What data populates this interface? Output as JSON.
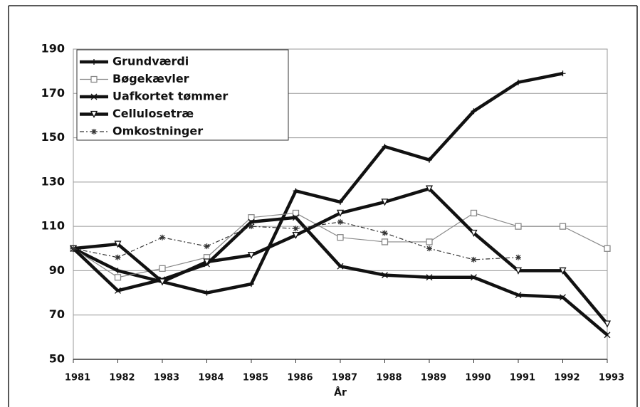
{
  "chart_data": {
    "type": "line",
    "x_label": "År",
    "x": [
      1981,
      1982,
      1983,
      1984,
      1985,
      1986,
      1987,
      1988,
      1989,
      1990,
      1991,
      1992,
      1993
    ],
    "xlim": [
      1981,
      1993
    ],
    "xticks": [
      1981,
      1982,
      1983,
      1984,
      1985,
      1986,
      1987,
      1988,
      1989,
      1990,
      1991,
      1992,
      1993
    ],
    "ylim": [
      50,
      190
    ],
    "yticks": [
      50,
      70,
      90,
      110,
      130,
      150,
      170,
      190
    ],
    "grid": true,
    "legend": "upper left",
    "series": [
      {
        "name": "Grundværdi",
        "color": "#111111",
        "line_width": 4.5,
        "marker": "plus",
        "values": [
          100,
          90,
          85,
          80,
          84,
          126,
          121,
          146,
          140,
          162,
          175,
          179,
          null
        ]
      },
      {
        "name": "Bøgekævler",
        "color": "#888888",
        "line_width": 1.2,
        "marker": "square",
        "values": [
          100,
          87,
          91,
          96,
          114,
          116,
          105,
          103,
          103,
          116,
          110,
          110,
          100
        ]
      },
      {
        "name": "Uafkortet tømmer",
        "color": "#111111",
        "line_width": 4.5,
        "marker": "x",
        "values": [
          100,
          81,
          86,
          93,
          112,
          114,
          92,
          88,
          87,
          87,
          79,
          78,
          61
        ]
      },
      {
        "name": "Cellulosetræ",
        "color": "#111111",
        "line_width": 4.5,
        "marker": "triangle",
        "values": [
          100,
          102,
          85,
          94,
          97,
          106,
          116,
          121,
          127,
          107,
          90,
          90,
          66
        ]
      },
      {
        "name": "Omkostninger",
        "color": "#333333",
        "line_width": 1.2,
        "marker": "asterisk",
        "dash": "6 3 2 3",
        "values": [
          100,
          96,
          105,
          101,
          110,
          109,
          112,
          107,
          100,
          95,
          96,
          null,
          null
        ]
      }
    ]
  }
}
